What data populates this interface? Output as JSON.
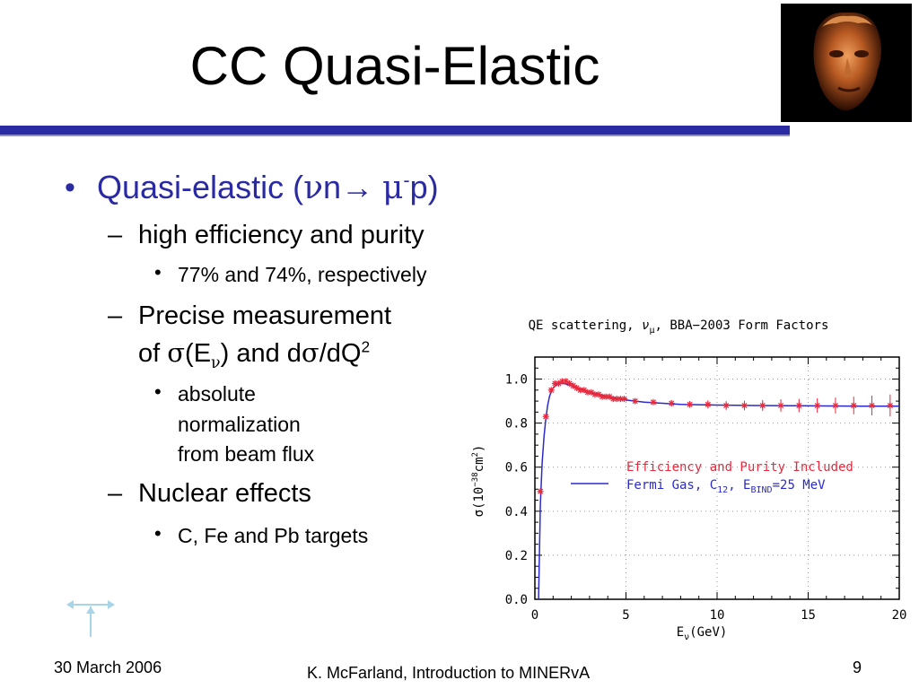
{
  "slide": {
    "title": "CC Quasi-Elastic",
    "bullets": {
      "main": {
        "prefix": "Quasi-elastic (",
        "nu": "ν",
        "n_arrow": "n→ ",
        "mu": "μ",
        "minus": "-",
        "suffix": "p)"
      },
      "efficiency": "high efficiency and purity",
      "efficiency_values": "77% and 74%, respectively",
      "precise_line1": "Precise measurement",
      "precise_line2": {
        "of": "of ",
        "sigma": "σ",
        "paren_e": "(E",
        "nu_sub": "ν",
        "and_d": ") and d",
        "sigma2": "σ",
        "dq": "/dQ",
        "sq": "2"
      },
      "normalization": [
        "absolute",
        "normalization",
        "from beam flux"
      ],
      "nuclear": "Nuclear effects",
      "targets": "C, Fe and Pb targets"
    },
    "footer": {
      "date": "30 March 2006",
      "author": "K. McFarland, Introduction to MINERvA",
      "page": "9"
    },
    "colors": {
      "accent": "#2a2aa3",
      "bullet_text": "#2a2aa3",
      "portrait_bg": "#000000"
    },
    "icons": {
      "portrait": "bust-photo",
      "nav": "navigation-arrows-icon"
    }
  },
  "chart_data": {
    "type": "scatter",
    "title": "QE scattering, νμ, BBA−2003 Form Factors",
    "title_parts": {
      "pre": "QE scattering, ",
      "nu": "ν",
      "mu_sub": "μ",
      "post": ", BBA−2003 Form Factors"
    },
    "xlabel": "Eν(GeV)",
    "xlabel_parts": {
      "e": "E",
      "nu": "ν",
      "unit": "(GeV)"
    },
    "ylabel": "σ(10⁻³⁸cm²)",
    "ylabel_parts": {
      "sigma": "σ",
      "mid": "(10",
      "exp": "−38",
      "cm": "cm",
      "sq": "2",
      "close": ")"
    },
    "xlim": [
      0,
      20
    ],
    "ylim": [
      0,
      1.1
    ],
    "xticks": [
      "0",
      "5",
      "10",
      "15",
      "20"
    ],
    "yticks": [
      "0.0",
      "0.2",
      "0.4",
      "0.6",
      "0.8",
      "1.0"
    ],
    "grid": true,
    "legend_position": "right",
    "series": [
      {
        "name": "Efficiency and Purity Included",
        "kind": "points-with-errors",
        "color": "#e8283c",
        "x": [
          0.3,
          0.6,
          0.9,
          1.1,
          1.3,
          1.5,
          1.7,
          1.9,
          2.1,
          2.3,
          2.5,
          2.7,
          2.9,
          3.1,
          3.3,
          3.5,
          3.7,
          3.9,
          4.1,
          4.3,
          4.5,
          4.7,
          4.9,
          5.5,
          6.5,
          7.5,
          8.5,
          9.5,
          10.5,
          11.5,
          12.5,
          13.5,
          14.5,
          15.5,
          16.5,
          17.5,
          18.5,
          19.5
        ],
        "y": [
          0.49,
          0.83,
          0.95,
          0.98,
          0.98,
          0.99,
          0.99,
          0.98,
          0.97,
          0.96,
          0.95,
          0.95,
          0.94,
          0.94,
          0.93,
          0.93,
          0.92,
          0.92,
          0.92,
          0.91,
          0.91,
          0.91,
          0.91,
          0.9,
          0.895,
          0.89,
          0.885,
          0.885,
          0.88,
          0.88,
          0.88,
          0.88,
          0.88,
          0.88,
          0.88,
          0.88,
          0.88,
          0.88
        ],
        "err": [
          0.01,
          0.01,
          0.01,
          0.01,
          0.01,
          0.01,
          0.01,
          0.01,
          0.01,
          0.01,
          0.01,
          0.01,
          0.01,
          0.01,
          0.01,
          0.01,
          0.01,
          0.01,
          0.01,
          0.01,
          0.01,
          0.01,
          0.01,
          0.01,
          0.01,
          0.012,
          0.015,
          0.018,
          0.02,
          0.022,
          0.025,
          0.028,
          0.03,
          0.033,
          0.036,
          0.04,
          0.045,
          0.05
        ]
      },
      {
        "name": "Fermi Gas, C12, EBIND=25 MeV",
        "name_parts": {
          "pre": "Fermi Gas, C",
          "sub12": "12",
          "mid": ", E",
          "subbind": "BIND",
          "post": "=25 MeV"
        },
        "kind": "line",
        "color": "#2a2ad0",
        "x": [
          0.2,
          0.3,
          0.4,
          0.5,
          0.6,
          0.7,
          0.8,
          0.9,
          1.0,
          1.2,
          1.4,
          1.6,
          1.8,
          2.0,
          2.5,
          3.0,
          3.5,
          4.0,
          5.0,
          6.0,
          7.0,
          8.0,
          10.0,
          12.0,
          14.0,
          16.0,
          18.0,
          20.0
        ],
        "y": [
          0.0,
          0.43,
          0.62,
          0.74,
          0.82,
          0.88,
          0.92,
          0.945,
          0.96,
          0.975,
          0.98,
          0.98,
          0.975,
          0.97,
          0.955,
          0.94,
          0.93,
          0.92,
          0.905,
          0.895,
          0.89,
          0.885,
          0.882,
          0.88,
          0.879,
          0.878,
          0.877,
          0.877
        ]
      }
    ]
  }
}
